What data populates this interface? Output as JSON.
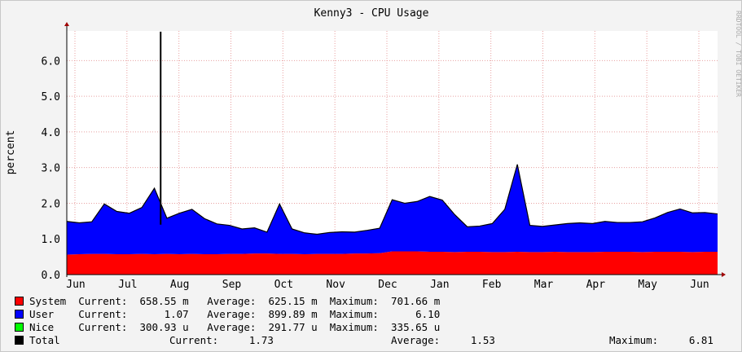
{
  "chart_data": {
    "type": "area",
    "title": "Kenny3 - CPU Usage",
    "ylabel": "percent",
    "ylim": [
      0,
      6.83
    ],
    "yticks": [
      "0.0",
      "1.0",
      "2.0",
      "3.0",
      "4.0",
      "5.0",
      "6.0"
    ],
    "ytick_values": [
      0,
      1,
      2,
      3,
      4,
      5,
      6
    ],
    "months": [
      "Jun",
      "Jul",
      "Aug",
      "Sep",
      "Oct",
      "Nov",
      "Dec",
      "Jan",
      "Feb",
      "Mar",
      "Apr",
      "May",
      "Jun"
    ],
    "grid": true,
    "watermark": "RRDTOOL / TOBI OETIKER",
    "colors": {
      "system": "#ff0000",
      "user": "#0000ff",
      "nice": "#00ff00",
      "total": "#000000",
      "grid": "#e8a0a0"
    },
    "x_weeks": 53,
    "series": [
      {
        "name": "System",
        "values": [
          0.56,
          0.57,
          0.58,
          0.58,
          0.57,
          0.57,
          0.58,
          0.57,
          0.58,
          0.57,
          0.58,
          0.57,
          0.57,
          0.58,
          0.58,
          0.59,
          0.59,
          0.58,
          0.58,
          0.57,
          0.58,
          0.58,
          0.58,
          0.59,
          0.59,
          0.6,
          0.65,
          0.65,
          0.65,
          0.64,
          0.64,
          0.63,
          0.64,
          0.64,
          0.63,
          0.63,
          0.64,
          0.63,
          0.63,
          0.64,
          0.63,
          0.63,
          0.63,
          0.64,
          0.64,
          0.64,
          0.63,
          0.64,
          0.64,
          0.64,
          0.63,
          0.64,
          0.64
        ]
      },
      {
        "name": "User",
        "values": [
          0.93,
          0.88,
          0.9,
          1.4,
          1.2,
          1.15,
          1.3,
          1.85,
          1.0,
          1.15,
          1.25,
          1.0,
          0.85,
          0.8,
          0.7,
          0.72,
          0.6,
          1.4,
          0.7,
          0.6,
          0.55,
          0.6,
          0.62,
          0.6,
          0.65,
          0.7,
          1.45,
          1.35,
          1.4,
          1.55,
          1.45,
          1.05,
          0.7,
          0.72,
          0.8,
          1.2,
          2.45,
          0.75,
          0.72,
          0.75,
          0.8,
          0.82,
          0.8,
          0.85,
          0.82,
          0.82,
          0.85,
          0.95,
          1.1,
          1.2,
          1.1,
          1.1,
          1.06
        ]
      },
      {
        "name": "Nice",
        "values": [
          0.0003,
          0.0003,
          0.0003,
          0.0003,
          0.0003,
          0.0003,
          0.0003,
          0.0003,
          0.0003,
          0.0003,
          0.0003,
          0.0003,
          0.0003,
          0.0003,
          0.0003,
          0.0003,
          0.0003,
          0.0003,
          0.0003,
          0.0003,
          0.0003,
          0.0003,
          0.0003,
          0.0003,
          0.0003,
          0.0003,
          0.0003,
          0.0003,
          0.0003,
          0.0003,
          0.0003,
          0.0003,
          0.0003,
          0.0003,
          0.0003,
          0.0003,
          0.0003,
          0.0003,
          0.0003,
          0.0003,
          0.0003,
          0.0003,
          0.0003,
          0.0003,
          0.0003,
          0.0003,
          0.0003,
          0.0003,
          0.0003,
          0.0003,
          0.0003,
          0.0003,
          0.0003
        ]
      }
    ],
    "total_spike": {
      "week": 7.5,
      "value": 6.81
    },
    "legend": [
      {
        "key": "system",
        "label": "System",
        "current": "658.55 m",
        "average": "625.15 m",
        "maximum": "701.66 m"
      },
      {
        "key": "user",
        "label": "User",
        "current": "1.07",
        "average": "899.89 m",
        "maximum": "6.10"
      },
      {
        "key": "nice",
        "label": "Nice",
        "current": "300.93 u",
        "average": "291.77 u",
        "maximum": "335.65 u"
      },
      {
        "key": "total",
        "label": "Total",
        "current": "1.73",
        "average": "1.53",
        "maximum": "6.81"
      }
    ],
    "legend_words": {
      "current": "Current:",
      "average": "Average:",
      "maximum": "Maximum:"
    }
  }
}
